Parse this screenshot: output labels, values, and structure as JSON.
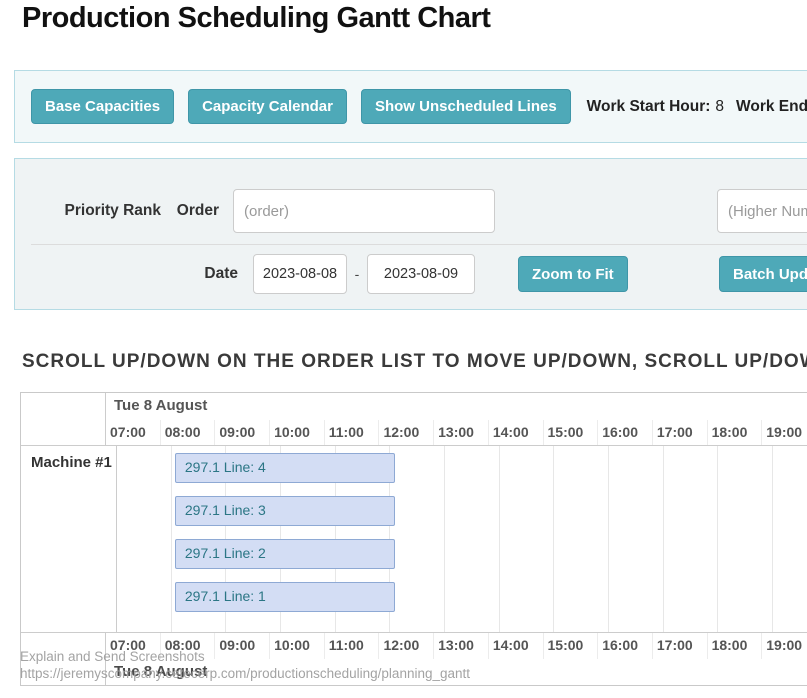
{
  "page": {
    "title": "Production Scheduling Gantt Chart"
  },
  "toolbar": {
    "buttons": [
      "Base Capacities",
      "Capacity Calendar",
      "Show Unscheduled Lines"
    ],
    "work_start_label": "Work Start Hour:",
    "work_start_value": "8",
    "work_end_label": "Work End Hour:"
  },
  "filters": {
    "order_label": "Order",
    "order_placeholder": "(order)",
    "priority_label": "Priority Rank",
    "priority_placeholder": "(Higher Num",
    "date_label": "Date",
    "date_from": "2023-08-08",
    "date_separator": "-",
    "date_to": "2023-08-09",
    "zoom_to_fit_label": "Zoom to Fit",
    "batch_update_label": "Batch Upda"
  },
  "instruction": "SCROLL UP/DOWN ON THE ORDER LIST TO MOVE UP/DOWN, SCROLL UP/DOWN",
  "gantt": {
    "date_header": "Tue 8 August",
    "date_footer": "Tue 8 August",
    "times": [
      "07:00",
      "08:00",
      "09:00",
      "10:00",
      "11:00",
      "12:00",
      "13:00",
      "14:00",
      "15:00",
      "16:00",
      "17:00",
      "18:00",
      "19:00"
    ],
    "machine_label": "Machine #1",
    "bars": [
      {
        "label": "297.1 Line: 4",
        "start": "08:00",
        "end": "12:00"
      },
      {
        "label": "297.1 Line: 3",
        "start": "08:00",
        "end": "12:00"
      },
      {
        "label": "297.1 Line: 2",
        "start": "08:00",
        "end": "12:00"
      },
      {
        "label": "297.1 Line: 1",
        "start": "08:00",
        "end": "12:00"
      }
    ]
  },
  "watermark": {
    "line1": "Explain and Send Screenshots",
    "line2": "https://jeremyscompany.cetecerp.com/productionscheduling/planning_gantt"
  },
  "colors": {
    "accent_teal": "#4ea9b8",
    "panel_border": "#b5dbe4",
    "bar_fill": "#d3ddf4",
    "bar_border": "#8ea9d4",
    "bar_text": "#2b7685"
  }
}
